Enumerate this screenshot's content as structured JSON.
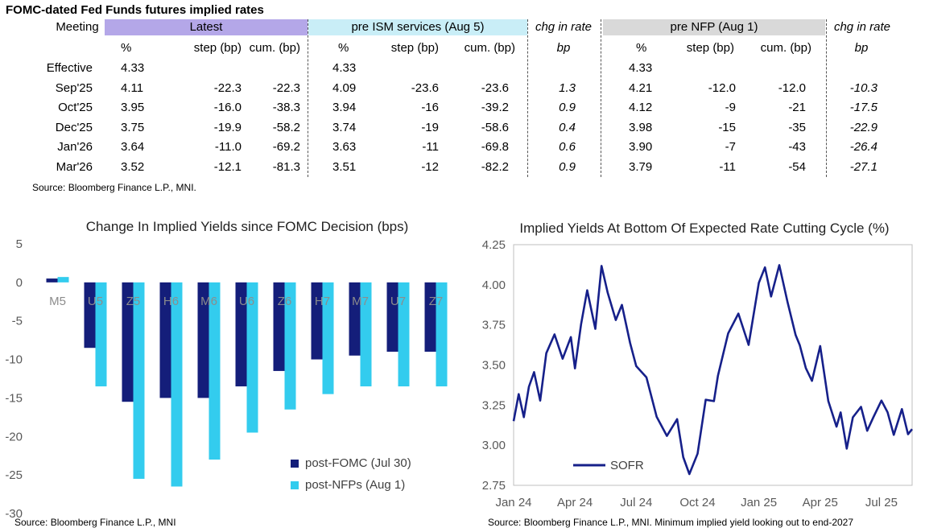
{
  "table": {
    "title": "FOMC-dated Fed Funds futures implied rates",
    "meeting_label": "Meeting",
    "groups": [
      "Latest",
      "pre ISM services (Aug 5)",
      "chg in rate",
      "pre NFP (Aug 1)",
      "chg in rate"
    ],
    "group_colors": [
      "#b4a7e8",
      "#c9eef7",
      "#ffffff",
      "#d9d9d9",
      "#ffffff"
    ],
    "subheaders": [
      "%",
      "step (bp)",
      "cum. (bp)",
      "%",
      "step (bp)",
      "cum. (bp)",
      "bp",
      "%",
      "step (bp)",
      "cum. (bp)",
      "bp"
    ],
    "rows": [
      [
        "Effective",
        "4.33",
        "",
        "",
        "4.33",
        "",
        "",
        "",
        "4.33",
        "",
        "",
        ""
      ],
      [
        "Sep'25",
        "4.11",
        "-22.3",
        "-22.3",
        "4.09",
        "-23.6",
        "-23.6",
        "1.3",
        "4.21",
        "-12.0",
        "-12.0",
        "-10.3"
      ],
      [
        "Oct'25",
        "3.95",
        "-16.0",
        "-38.3",
        "3.94",
        "-16",
        "-39.2",
        "0.9",
        "4.12",
        "-9",
        "-21",
        "-17.5"
      ],
      [
        "Dec'25",
        "3.75",
        "-19.9",
        "-58.2",
        "3.74",
        "-19",
        "-58.6",
        "0.4",
        "3.98",
        "-15",
        "-35",
        "-22.9"
      ],
      [
        "Jan'26",
        "3.64",
        "-11.0",
        "-69.2",
        "3.63",
        "-11",
        "-69.8",
        "0.6",
        "3.90",
        "-7",
        "-43",
        "-26.4"
      ],
      [
        "Mar'26",
        "3.52",
        "-12.1",
        "-81.3",
        "3.51",
        "-12",
        "-82.2",
        "0.9",
        "3.79",
        "-11",
        "-54",
        "-27.1"
      ]
    ],
    "source": "Source: Bloomberg Finance L.P., MNI."
  },
  "chart_data": [
    {
      "type": "bar",
      "title": "Change In Implied Yields since FOMC Decision (bps)",
      "categories": [
        "M5",
        "U5",
        "Z5",
        "H6",
        "M6",
        "U6",
        "Z6",
        "H7",
        "M7",
        "U7",
        "Z7"
      ],
      "series": [
        {
          "name": "post-FOMC (Jul 30)",
          "color": "#141e7a",
          "values": [
            0.5,
            -8.5,
            -15.5,
            -15.0,
            -15.0,
            -13.5,
            -11.5,
            -10.0,
            -9.5,
            -9.0,
            -9.0
          ]
        },
        {
          "name": "post-NFPs (Aug 1)",
          "color": "#33ccee",
          "values": [
            0.7,
            -13.5,
            -25.5,
            -26.5,
            -23.0,
            -19.5,
            -16.5,
            -14.5,
            -13.5,
            -13.5,
            -13.5
          ]
        }
      ],
      "ylim": [
        -30,
        5
      ],
      "yticks": [
        5,
        0,
        -5,
        -10,
        -15,
        -20,
        -25,
        -30
      ],
      "legend_position": "bottom-right",
      "source": "Source: Bloomberg Finance L.P., MNI"
    },
    {
      "type": "line",
      "title": "Implied Yields At Bottom Of Expected Rate Cutting Cycle (%)",
      "series_name": "SOFR",
      "color": "#16208a",
      "xlim": [
        "2024-01",
        "2025-08"
      ],
      "ylim": [
        2.75,
        4.25
      ],
      "yticks": [
        "4.25",
        "4.00",
        "3.75",
        "3.50",
        "3.25",
        "3.00",
        "2.75"
      ],
      "xticks": [
        "Jan 24",
        "Apr 24",
        "Jul 24",
        "Oct 24",
        "Jan 25",
        "Apr 25",
        "Jul 25"
      ],
      "x_month_index": [
        0,
        0.25,
        0.5,
        0.75,
        1,
        1.3,
        1.6,
        2,
        2.4,
        2.8,
        3,
        3.3,
        3.6,
        4,
        4.3,
        4.6,
        5,
        5.3,
        5.7,
        6,
        6.5,
        7,
        7.5,
        8,
        8.3,
        8.6,
        9,
        9.4,
        9.8,
        10,
        10.5,
        11,
        11.5,
        12,
        12.3,
        12.6,
        13,
        13.4,
        13.8,
        14,
        14.3,
        14.6,
        15,
        15.4,
        15.8,
        16,
        16.3,
        16.6,
        17,
        17.3,
        17.6,
        18,
        18.3,
        18.6,
        19,
        19.3,
        19.5
      ],
      "values": [
        3.15,
        3.3,
        3.2,
        3.35,
        3.45,
        3.3,
        3.55,
        3.7,
        3.55,
        3.65,
        3.5,
        3.75,
        3.95,
        3.75,
        4.1,
        3.95,
        3.8,
        3.85,
        3.65,
        3.5,
        3.4,
        3.2,
        3.05,
        3.15,
        2.95,
        2.8,
        2.95,
        3.3,
        3.25,
        3.45,
        3.7,
        3.8,
        3.65,
        4.0,
        4.1,
        3.95,
        4.1,
        3.9,
        3.7,
        3.6,
        3.5,
        3.4,
        3.6,
        3.3,
        3.1,
        3.2,
        3.0,
        3.15,
        3.25,
        3.1,
        3.15,
        3.3,
        3.2,
        3.05,
        3.25,
        3.05,
        3.1
      ],
      "source": "Source: Bloomberg Finance L.P., MNI. Minimum implied yield looking out to end-2027"
    }
  ]
}
